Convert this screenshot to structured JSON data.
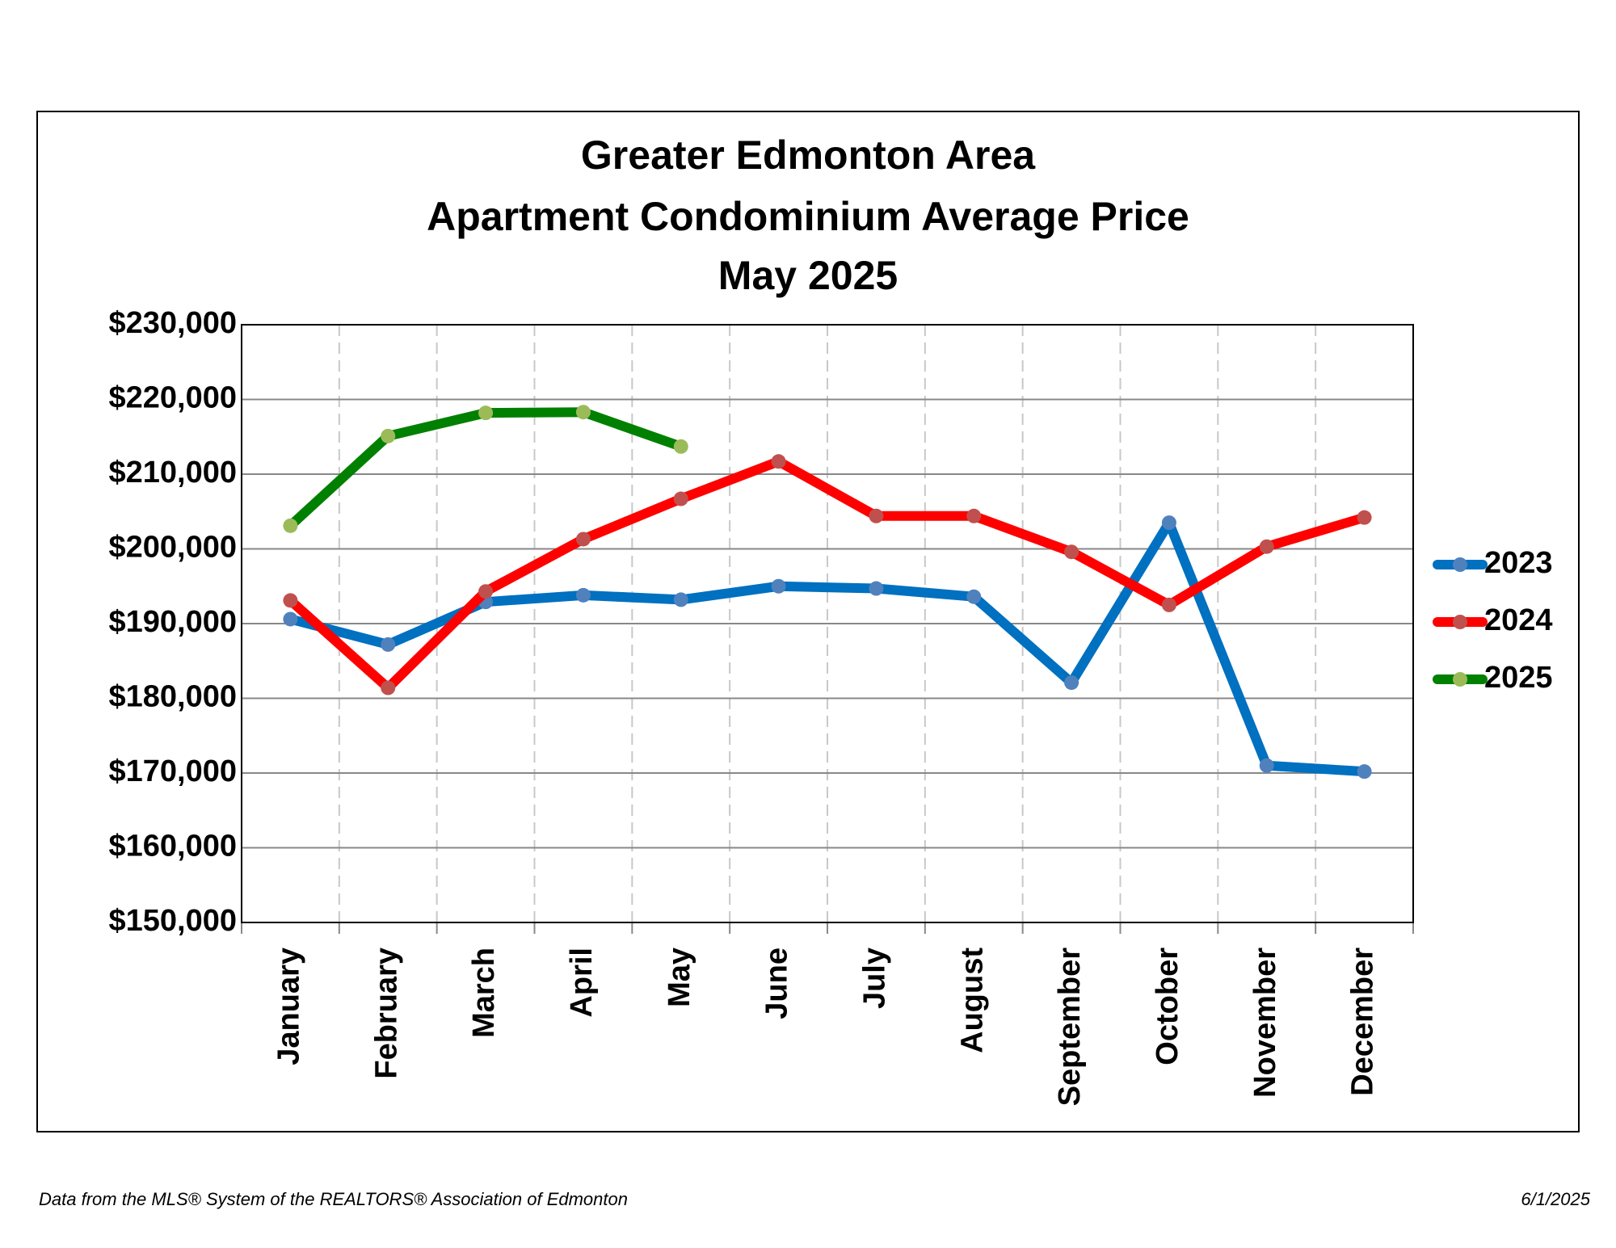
{
  "chart_data": {
    "type": "line",
    "title": [
      "Greater Edmonton Area",
      "Apartment Condominium Average Price",
      "May 2025"
    ],
    "categories": [
      "January",
      "February",
      "March",
      "April",
      "May",
      "June",
      "July",
      "August",
      "September",
      "October",
      "November",
      "December"
    ],
    "series": [
      {
        "name": "2023",
        "color": "#0070c0",
        "marker_color": "#4f81bd",
        "values": [
          190600,
          187200,
          192900,
          193800,
          193200,
          195000,
          194700,
          193600,
          182100,
          203500,
          171000,
          170200
        ]
      },
      {
        "name": "2024",
        "color": "#ff0000",
        "marker_color": "#c0504d",
        "values": [
          193100,
          181400,
          194300,
          201300,
          206700,
          211700,
          204400,
          204400,
          199600,
          192500,
          200300,
          204200
        ]
      },
      {
        "name": "2025",
        "color": "#008000",
        "marker_color": "#9bbb59",
        "values": [
          203100,
          215100,
          218200,
          218300,
          213700,
          null,
          null,
          null,
          null,
          null,
          null,
          null
        ]
      }
    ],
    "ylim": [
      150000,
      230000
    ],
    "yticks": [
      {
        "value": 150000,
        "label": "$150,000"
      },
      {
        "value": 160000,
        "label": "$160,000"
      },
      {
        "value": 170000,
        "label": "$170,000"
      },
      {
        "value": 180000,
        "label": "$180,000"
      },
      {
        "value": 190000,
        "label": "$190,000"
      },
      {
        "value": 200000,
        "label": "$200,000"
      },
      {
        "value": 210000,
        "label": "$210,000"
      },
      {
        "value": 220000,
        "label": "$220,000"
      },
      {
        "value": 230000,
        "label": "$230,000"
      }
    ],
    "grid": true,
    "legend": "right",
    "footer": {
      "source": "Data from the MLS® System of the REALTORS® Association of Edmonton",
      "date": "6/1/2025"
    }
  }
}
